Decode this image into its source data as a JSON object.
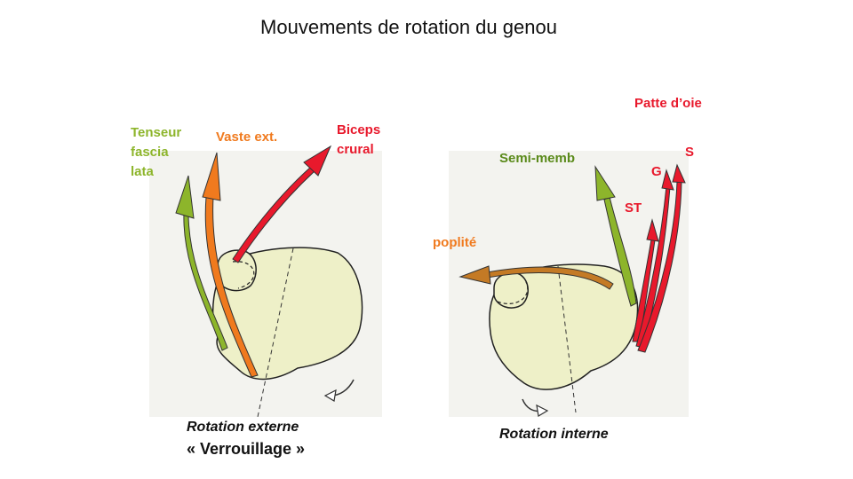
{
  "title": "Mouvements de rotation du genou",
  "colors": {
    "green": "#8db52b",
    "dark_green": "#5a8a1a",
    "orange": "#f07a1e",
    "brown": "#c47a25",
    "red": "#e8192c",
    "bone": "#eef0c8",
    "paper": "#f3f3ef"
  },
  "left": {
    "labels": {
      "tenseur_line1": "Tenseur",
      "tenseur_line2": "fascia",
      "tenseur_line3": "lata",
      "vaste": "Vaste ext.",
      "biceps_line1": "Biceps",
      "biceps_line2": "crural"
    },
    "caption_line1": "Rotation externe",
    "caption_line2": "« Verrouillage  »"
  },
  "right": {
    "labels": {
      "patte": "Patte d’oie",
      "semi": "Semi-memb",
      "popliteus": "poplité",
      "s": "S",
      "g": "G",
      "st": "ST"
    },
    "caption": "Rotation interne"
  }
}
